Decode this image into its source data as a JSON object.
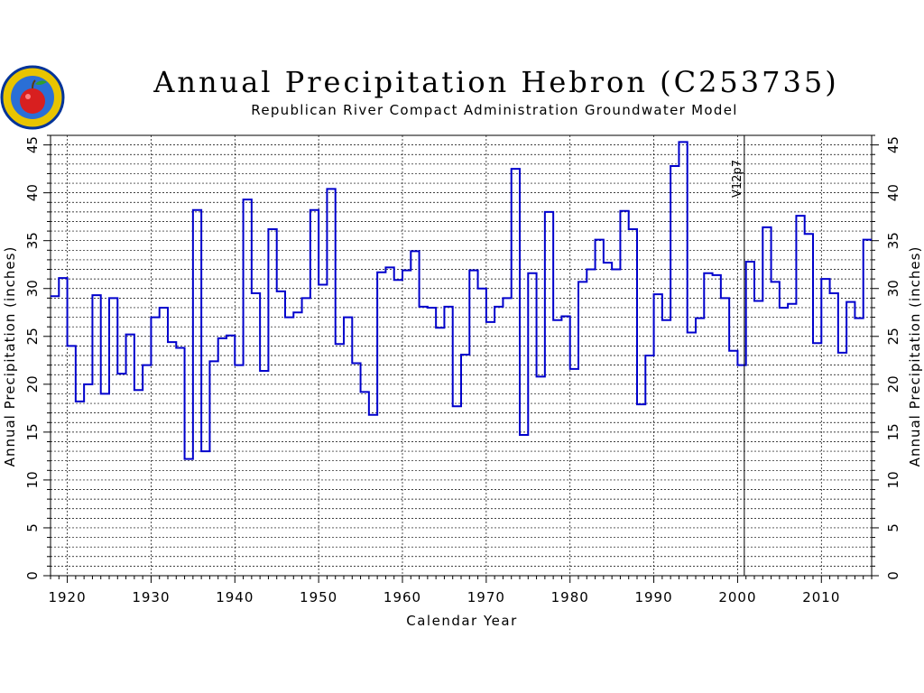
{
  "title": "Annual Precipitation Hebron (C253735)",
  "subtitle": "Republican River Compact Administration Groundwater Model",
  "colors": {
    "series": "#0000cc",
    "axis": "#000000"
  },
  "chart_data": {
    "type": "line",
    "step": true,
    "title": "Annual Precipitation Hebron (C253735)",
    "xlabel": "Calendar Year",
    "ylabel": "Annual Precipitation (inches)",
    "ylabel_right": "Annual Precipitation (inches)",
    "xlim": [
      1918,
      2016
    ],
    "ylim": [
      0,
      46
    ],
    "xticks": [
      1920,
      1930,
      1940,
      1950,
      1960,
      1970,
      1980,
      1990,
      2000,
      2010
    ],
    "yticks": [
      0,
      5,
      10,
      15,
      20,
      25,
      30,
      35,
      40,
      45
    ],
    "grid": true,
    "annotations": [
      {
        "x": 2000.8,
        "text": "V12p7"
      }
    ],
    "series": [
      {
        "years": [
          1918,
          1919,
          1920,
          1921,
          1922,
          1923,
          1924,
          1925,
          1926,
          1927,
          1928,
          1929,
          1930,
          1931,
          1932,
          1933,
          1934,
          1935,
          1936,
          1937,
          1938,
          1939,
          1940,
          1941,
          1942,
          1943,
          1944,
          1945,
          1946,
          1947,
          1948,
          1949,
          1950,
          1951,
          1952,
          1953,
          1954,
          1955,
          1956,
          1957,
          1958,
          1959,
          1960,
          1961,
          1962,
          1963,
          1964,
          1965,
          1966,
          1967,
          1968,
          1969,
          1970,
          1971,
          1972,
          1973,
          1974,
          1975,
          1976,
          1977,
          1978,
          1979,
          1980,
          1981,
          1982,
          1983,
          1984,
          1985,
          1986,
          1987,
          1988,
          1989,
          1990,
          1991,
          1992,
          1993,
          1994,
          1995,
          1996,
          1997,
          1998,
          1999,
          2000,
          2001,
          2002,
          2003,
          2004,
          2005,
          2006,
          2007,
          2008,
          2009,
          2010,
          2011,
          2012,
          2013,
          2014,
          2015
        ],
        "values": [
          29.2,
          31.1,
          24.0,
          18.2,
          20.0,
          29.3,
          19.0,
          29.0,
          21.1,
          25.2,
          19.4,
          22.0,
          27.0,
          28.0,
          24.4,
          23.8,
          12.2,
          38.2,
          13.0,
          22.4,
          24.8,
          25.1,
          22.0,
          39.3,
          29.5,
          21.4,
          36.2,
          29.7,
          27.0,
          27.5,
          29.0,
          38.2,
          30.4,
          40.4,
          24.2,
          27.0,
          22.2,
          19.2,
          16.8,
          31.7,
          32.2,
          30.9,
          31.9,
          33.9,
          28.1,
          28.0,
          25.9,
          28.1,
          17.7,
          23.1,
          31.9,
          30.0,
          26.5,
          28.1,
          29.0,
          42.5,
          14.7,
          31.6,
          20.8,
          38.0,
          26.7,
          27.1,
          21.6,
          30.7,
          32.0,
          35.1,
          32.7,
          32.0,
          38.1,
          36.2,
          17.9,
          23.0,
          29.4,
          26.7,
          42.8,
          45.3,
          25.4,
          26.9,
          31.6,
          31.4,
          29.0,
          23.5,
          22.0,
          32.8,
          28.7,
          36.4,
          30.7,
          28.0,
          28.4,
          37.6,
          35.7,
          24.3,
          31.0,
          29.5,
          23.3,
          28.6,
          26.9,
          35.1
        ]
      }
    ]
  }
}
